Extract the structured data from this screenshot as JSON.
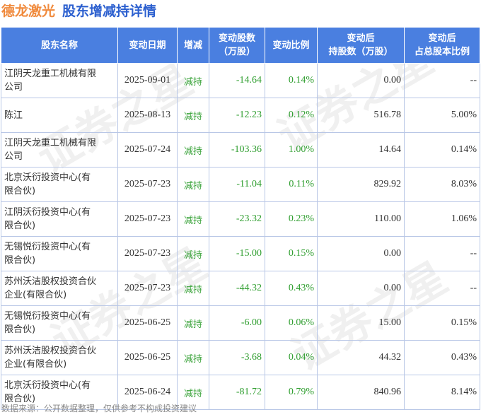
{
  "title": {
    "company": "德龙激光",
    "topic": "股东增减持详情"
  },
  "headers": {
    "name": "股东名称",
    "date": "变动日期",
    "type": "增减",
    "change_shares": [
      "变动股数",
      "（万股）"
    ],
    "change_ratio": "变动比例",
    "after_shares": [
      "变动后",
      "持股数（万股）"
    ],
    "after_ratio": [
      "变动后",
      "占总股本比例"
    ]
  },
  "rows": [
    {
      "name": [
        "江阴天龙重工机械有限",
        "公司"
      ],
      "date": "2025-09-01",
      "type": "减持",
      "change_shares": "-14.64",
      "change_ratio": "0.14%",
      "after_shares": "0.00",
      "after_ratio": "--"
    },
    {
      "name": [
        "陈江",
        ""
      ],
      "date": "2025-08-13",
      "type": "减持",
      "change_shares": "-12.23",
      "change_ratio": "0.12%",
      "after_shares": "516.78",
      "after_ratio": "5.00%"
    },
    {
      "name": [
        "江阴天龙重工机械有限",
        "公司"
      ],
      "date": "2025-07-24",
      "type": "减持",
      "change_shares": "-103.36",
      "change_ratio": "1.00%",
      "after_shares": "14.64",
      "after_ratio": "0.14%"
    },
    {
      "name": [
        "北京沃衍投资中心(有",
        "限合伙)"
      ],
      "date": "2025-07-23",
      "type": "减持",
      "change_shares": "-11.04",
      "change_ratio": "0.11%",
      "after_shares": "829.92",
      "after_ratio": "8.03%"
    },
    {
      "name": [
        "江阴沃衍投资中心(有",
        "限合伙)"
      ],
      "date": "2025-07-23",
      "type": "减持",
      "change_shares": "-23.32",
      "change_ratio": "0.23%",
      "after_shares": "110.00",
      "after_ratio": "1.06%"
    },
    {
      "name": [
        "无锡悦衍投资中心(有",
        "限合伙)"
      ],
      "date": "2025-07-23",
      "type": "减持",
      "change_shares": "-15.00",
      "change_ratio": "0.15%",
      "after_shares": "0.00",
      "after_ratio": "--"
    },
    {
      "name": [
        "苏州沃洁股权投资合伙",
        "企业(有限合伙)"
      ],
      "date": "2025-07-23",
      "type": "减持",
      "change_shares": "-44.32",
      "change_ratio": "0.43%",
      "after_shares": "0.00",
      "after_ratio": "--"
    },
    {
      "name": [
        "无锡悦衍投资中心(有",
        "限合伙)"
      ],
      "date": "2025-06-25",
      "type": "减持",
      "change_shares": "-6.00",
      "change_ratio": "0.06%",
      "after_shares": "15.00",
      "after_ratio": "0.15%"
    },
    {
      "name": [
        "苏州沃洁股权投资合伙",
        "企业(有限合伙)"
      ],
      "date": "2025-06-25",
      "type": "减持",
      "change_shares": "-3.68",
      "change_ratio": "0.04%",
      "after_shares": "44.32",
      "after_ratio": "0.43%"
    },
    {
      "name": [
        "北京沃衍投资中心(有",
        "限合伙)"
      ],
      "date": "2025-06-24",
      "type": "减持",
      "change_shares": "-81.72",
      "change_ratio": "0.79%",
      "after_shares": "840.96",
      "after_ratio": "8.14%"
    }
  ],
  "footer": "数据来源：公开数据整理，仅供参考不构成投资建议",
  "watermark": "证券之星",
  "colors": {
    "header_bg": "#4a7fe0",
    "company": "#f08a3c",
    "topic": "#2b5fcf",
    "decrease": "#2f9e2f"
  }
}
